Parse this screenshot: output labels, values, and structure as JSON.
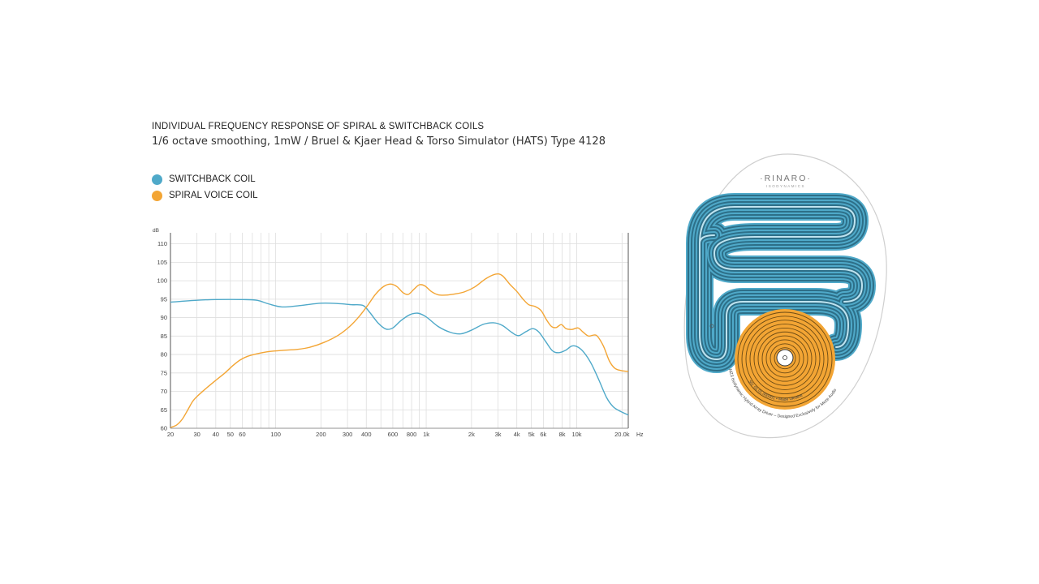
{
  "chart_data": {
    "type": "line",
    "title": "INDIVIDUAL FREQUENCY RESPONSE OF SPIRAL & SWITCHBACK COILS",
    "subtitle": "1/6 octave smoothing, 1mW / Bruel & Kjaer Head & Torso Simulator (HATS) Type 4128",
    "xlabel": "Hz",
    "ylabel": "dB",
    "x_scale": "log",
    "xlim": [
      20,
      22000
    ],
    "ylim": [
      60,
      113
    ],
    "grid": true,
    "legend_position": "top-left",
    "x_ticks": [
      {
        "value": 20,
        "label": "20"
      },
      {
        "value": 30,
        "label": "30"
      },
      {
        "value": 40,
        "label": "40"
      },
      {
        "value": 50,
        "label": "50"
      },
      {
        "value": 60,
        "label": "60"
      },
      {
        "value": 100,
        "label": "100"
      },
      {
        "value": 200,
        "label": "200"
      },
      {
        "value": 300,
        "label": "300"
      },
      {
        "value": 400,
        "label": "400"
      },
      {
        "value": 600,
        "label": "600"
      },
      {
        "value": 800,
        "label": "800"
      },
      {
        "value": 1000,
        "label": "1k"
      },
      {
        "value": 2000,
        "label": "2k"
      },
      {
        "value": 3000,
        "label": "3k"
      },
      {
        "value": 4000,
        "label": "4k"
      },
      {
        "value": 5000,
        "label": "5k"
      },
      {
        "value": 6000,
        "label": "6k"
      },
      {
        "value": 8000,
        "label": "8k"
      },
      {
        "value": 10000,
        "label": "10k"
      },
      {
        "value": 20000,
        "label": "20.0k"
      }
    ],
    "y_ticks": [
      60,
      65,
      70,
      75,
      80,
      85,
      90,
      95,
      100,
      105,
      110
    ],
    "series": [
      {
        "name": "SWITCHBACK COIL",
        "color": "#4fa9c9",
        "points": [
          [
            20,
            94.2
          ],
          [
            30,
            94.7
          ],
          [
            40,
            94.9
          ],
          [
            60,
            94.9
          ],
          [
            75,
            94.7
          ],
          [
            90,
            93.7
          ],
          [
            110,
            92.9
          ],
          [
            140,
            93.2
          ],
          [
            200,
            93.9
          ],
          [
            260,
            93.8
          ],
          [
            320,
            93.5
          ],
          [
            380,
            93.3
          ],
          [
            420,
            91.5
          ],
          [
            480,
            88.5
          ],
          [
            540,
            86.9
          ],
          [
            600,
            87.2
          ],
          [
            680,
            89.2
          ],
          [
            780,
            90.8
          ],
          [
            880,
            91.2
          ],
          [
            1000,
            90.2
          ],
          [
            1200,
            87.6
          ],
          [
            1450,
            86.0
          ],
          [
            1700,
            85.6
          ],
          [
            2000,
            86.6
          ],
          [
            2400,
            88.2
          ],
          [
            2800,
            88.6
          ],
          [
            3200,
            87.9
          ],
          [
            3700,
            86.0
          ],
          [
            4100,
            85.1
          ],
          [
            4600,
            86.2
          ],
          [
            5100,
            87.0
          ],
          [
            5600,
            86.1
          ],
          [
            6200,
            83.6
          ],
          [
            6900,
            81.0
          ],
          [
            7600,
            80.5
          ],
          [
            8400,
            81.1
          ],
          [
            9300,
            82.3
          ],
          [
            10200,
            82.0
          ],
          [
            11200,
            80.5
          ],
          [
            12500,
            77.5
          ],
          [
            14000,
            73.2
          ],
          [
            15800,
            68.3
          ],
          [
            17500,
            65.8
          ],
          [
            19500,
            64.6
          ],
          [
            22000,
            63.6
          ]
        ]
      },
      {
        "name": "SPIRAL VOICE COIL",
        "color": "#f3a534",
        "points": [
          [
            20,
            60.2
          ],
          [
            22,
            60.9
          ],
          [
            24,
            62.5
          ],
          [
            26,
            64.9
          ],
          [
            28,
            67.2
          ],
          [
            30,
            68.6
          ],
          [
            34,
            70.6
          ],
          [
            40,
            73.0
          ],
          [
            46,
            75.0
          ],
          [
            52,
            77.0
          ],
          [
            58,
            78.5
          ],
          [
            65,
            79.5
          ],
          [
            75,
            80.2
          ],
          [
            90,
            80.8
          ],
          [
            110,
            81.1
          ],
          [
            140,
            81.4
          ],
          [
            170,
            82.0
          ],
          [
            210,
            83.3
          ],
          [
            260,
            85.2
          ],
          [
            310,
            87.6
          ],
          [
            360,
            90.4
          ],
          [
            410,
            93.4
          ],
          [
            460,
            96.3
          ],
          [
            520,
            98.4
          ],
          [
            580,
            99.1
          ],
          [
            640,
            98.4
          ],
          [
            700,
            96.8
          ],
          [
            760,
            96.3
          ],
          [
            830,
            97.7
          ],
          [
            900,
            98.9
          ],
          [
            980,
            98.6
          ],
          [
            1080,
            97.1
          ],
          [
            1200,
            96.2
          ],
          [
            1350,
            96.1
          ],
          [
            1550,
            96.4
          ],
          [
            1800,
            97.0
          ],
          [
            2100,
            98.3
          ],
          [
            2500,
            100.6
          ],
          [
            2900,
            101.8
          ],
          [
            3200,
            101.4
          ],
          [
            3600,
            99.0
          ],
          [
            4000,
            97.1
          ],
          [
            4400,
            95.0
          ],
          [
            4800,
            93.5
          ],
          [
            5300,
            93.0
          ],
          [
            5800,
            91.9
          ],
          [
            6300,
            89.4
          ],
          [
            6800,
            87.6
          ],
          [
            7300,
            87.3
          ],
          [
            7900,
            88.1
          ],
          [
            8500,
            87.0
          ],
          [
            9300,
            86.8
          ],
          [
            10200,
            87.2
          ],
          [
            11000,
            86.1
          ],
          [
            12000,
            85.0
          ],
          [
            13500,
            85.2
          ],
          [
            15000,
            82.4
          ],
          [
            16500,
            78.2
          ],
          [
            18000,
            76.2
          ],
          [
            20000,
            75.6
          ],
          [
            22000,
            75.4
          ]
        ]
      }
    ]
  },
  "legend": {
    "items": [
      {
        "label": "SWITCHBACK COIL",
        "color": "#4fa9c9"
      },
      {
        "label": "SPIRAL VOICE COIL",
        "color": "#f3a534"
      }
    ]
  },
  "driver_image": {
    "brand": "·RINARO·",
    "brand_sub": "ISODYNAMICS",
    "marking_text": "MZ3 Isodynamic Hybrid Array Driver – Designed Exclusively for Meze Audio",
    "marking_text_2": "SN: 01.01.000001 • Made Ukraine",
    "switchback_color": "#4fa9c9",
    "spiral_color": "#f3a534"
  }
}
